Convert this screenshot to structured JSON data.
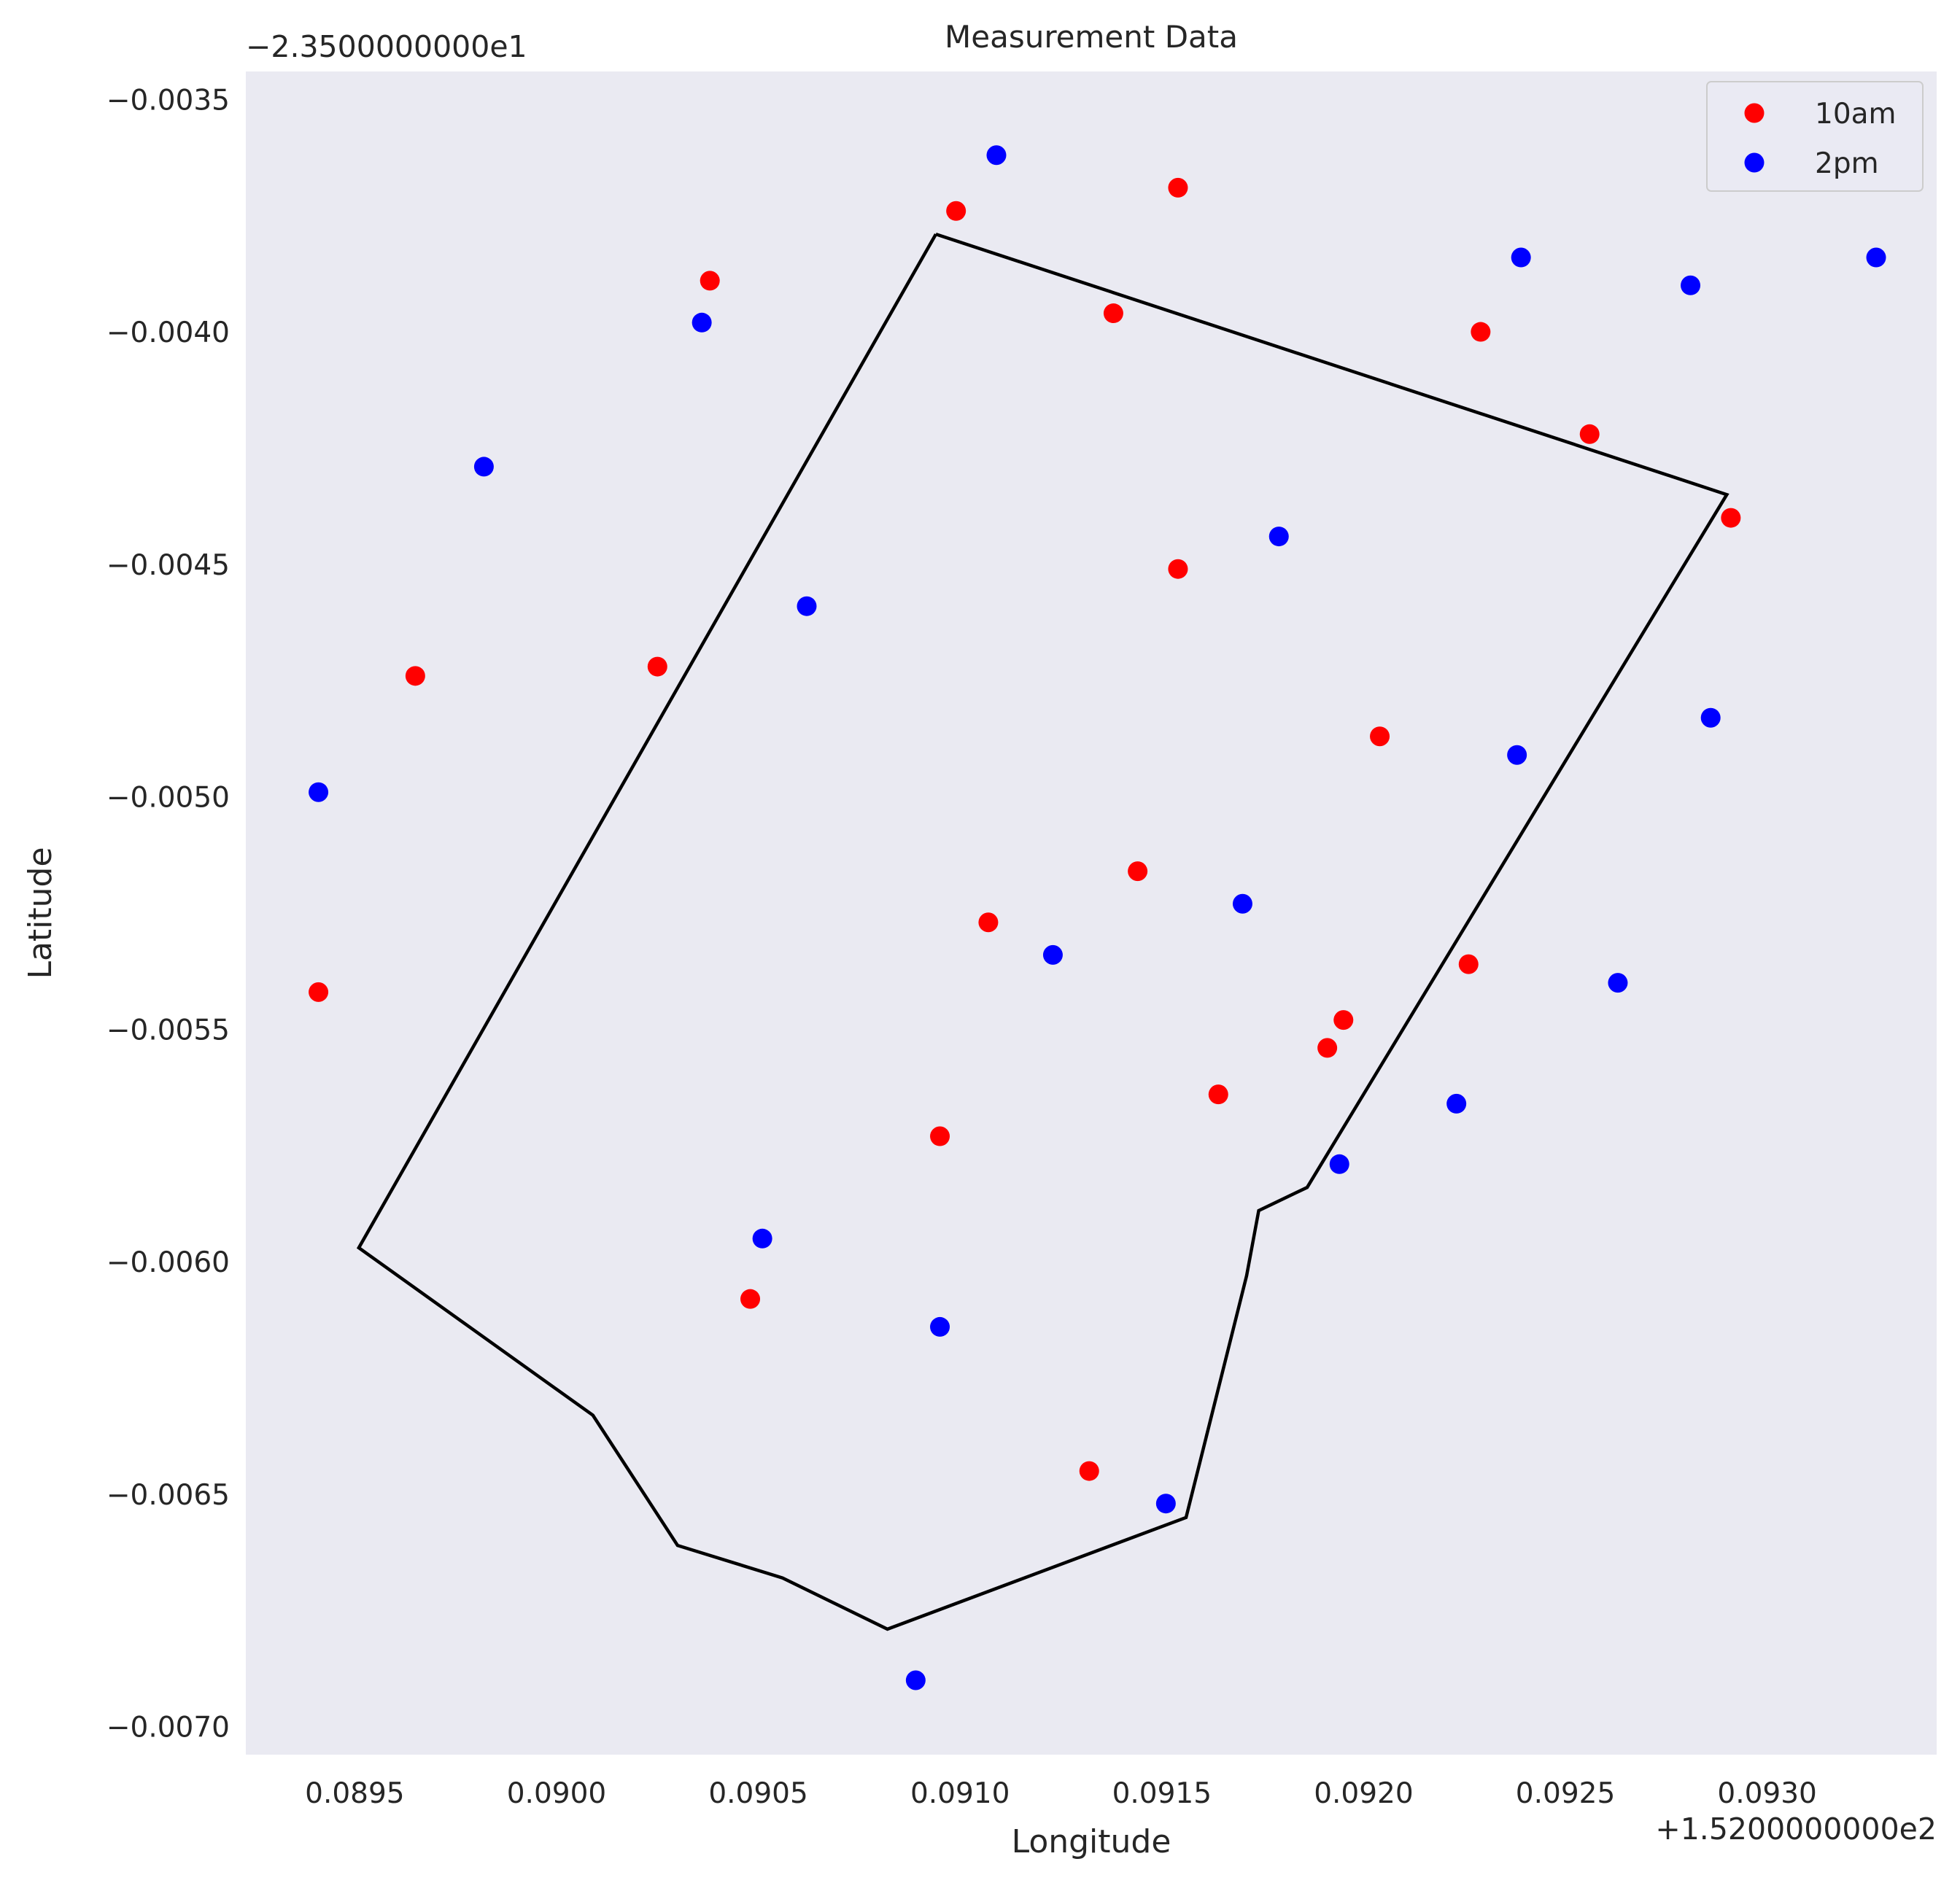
{
  "chart_data": {
    "type": "scatter",
    "title": "Measurement Data",
    "xlabel": "Longitude",
    "ylabel": "Latitude",
    "x_offset_text": "+1.5200000000e2",
    "y_offset_text": "−2.3500000000e1",
    "xlim": [
      0.08923,
      0.09342
    ],
    "ylim": [
      -0.00706,
      -0.00344
    ],
    "xticks": [
      0.0895,
      0.09,
      0.0905,
      0.091,
      0.0915,
      0.092,
      0.0925,
      0.093
    ],
    "xtick_labels": [
      "0.0895",
      "0.0900",
      "0.0905",
      "0.0910",
      "0.0915",
      "0.0920",
      "0.0925",
      "0.0930"
    ],
    "yticks": [
      -0.0035,
      -0.004,
      -0.0045,
      -0.005,
      -0.0055,
      -0.006,
      -0.0065,
      -0.007
    ],
    "ytick_labels": [
      "−0.0035",
      "−0.0040",
      "−0.0045",
      "−0.0050",
      "−0.0055",
      "−0.0060",
      "−0.0065",
      "−0.0070"
    ],
    "grid": false,
    "background_color": "#eaeaf2",
    "legend_position": "top-right",
    "series": [
      {
        "name": "10am",
        "color": "#ff0000",
        "points": [
          [
            0.08941,
            -0.00542
          ],
          [
            0.08965,
            -0.00474
          ],
          [
            0.09025,
            -0.00472
          ],
          [
            0.09038,
            -0.00389
          ],
          [
            0.09048,
            -0.00608
          ],
          [
            0.09095,
            -0.00573
          ],
          [
            0.09099,
            -0.00374
          ],
          [
            0.09107,
            -0.00527
          ],
          [
            0.09132,
            -0.00645
          ],
          [
            0.09138,
            -0.00396
          ],
          [
            0.09144,
            -0.00516
          ],
          [
            0.09154,
            -0.00369
          ],
          [
            0.09154,
            -0.00451
          ],
          [
            0.09164,
            -0.00564
          ],
          [
            0.09191,
            -0.00554
          ],
          [
            0.09195,
            -0.00548
          ],
          [
            0.09204,
            -0.00487
          ],
          [
            0.09226,
            -0.00536
          ],
          [
            0.09229,
            -0.004
          ],
          [
            0.09256,
            -0.00422
          ],
          [
            0.09291,
            -0.0044
          ]
        ]
      },
      {
        "name": "2pm",
        "color": "#0000ff",
        "points": [
          [
            0.08941,
            -0.00499
          ],
          [
            0.08982,
            -0.00429
          ],
          [
            0.09036,
            -0.00398
          ],
          [
            0.09051,
            -0.00595
          ],
          [
            0.09062,
            -0.00459
          ],
          [
            0.09089,
            -0.0069
          ],
          [
            0.09095,
            -0.00614
          ],
          [
            0.09109,
            -0.00362
          ],
          [
            0.09123,
            -0.00534
          ],
          [
            0.09151,
            -0.00652
          ],
          [
            0.0917,
            -0.00523
          ],
          [
            0.09179,
            -0.00444
          ],
          [
            0.09194,
            -0.00579
          ],
          [
            0.09223,
            -0.00566
          ],
          [
            0.09238,
            -0.00491
          ],
          [
            0.09239,
            -0.00384
          ],
          [
            0.09263,
            -0.0054
          ],
          [
            0.09281,
            -0.0039
          ],
          [
            0.09286,
            -0.00483
          ],
          [
            0.09327,
            -0.00384
          ]
        ]
      }
    ],
    "boundary": {
      "color": "#000000",
      "points": [
        [
          0.09094,
          -0.00379
        ],
        [
          0.0929,
          -0.00435
        ],
        [
          0.09186,
          -0.00584
        ],
        [
          0.09174,
          -0.00589
        ],
        [
          0.09171,
          -0.00603
        ],
        [
          0.09156,
          -0.00655
        ],
        [
          0.09082,
          -0.00679
        ],
        [
          0.09056,
          -0.00668
        ],
        [
          0.0903,
          -0.00661
        ],
        [
          0.09009,
          -0.00633
        ],
        [
          0.08951,
          -0.00597
        ],
        [
          0.09094,
          -0.00379
        ]
      ]
    }
  }
}
